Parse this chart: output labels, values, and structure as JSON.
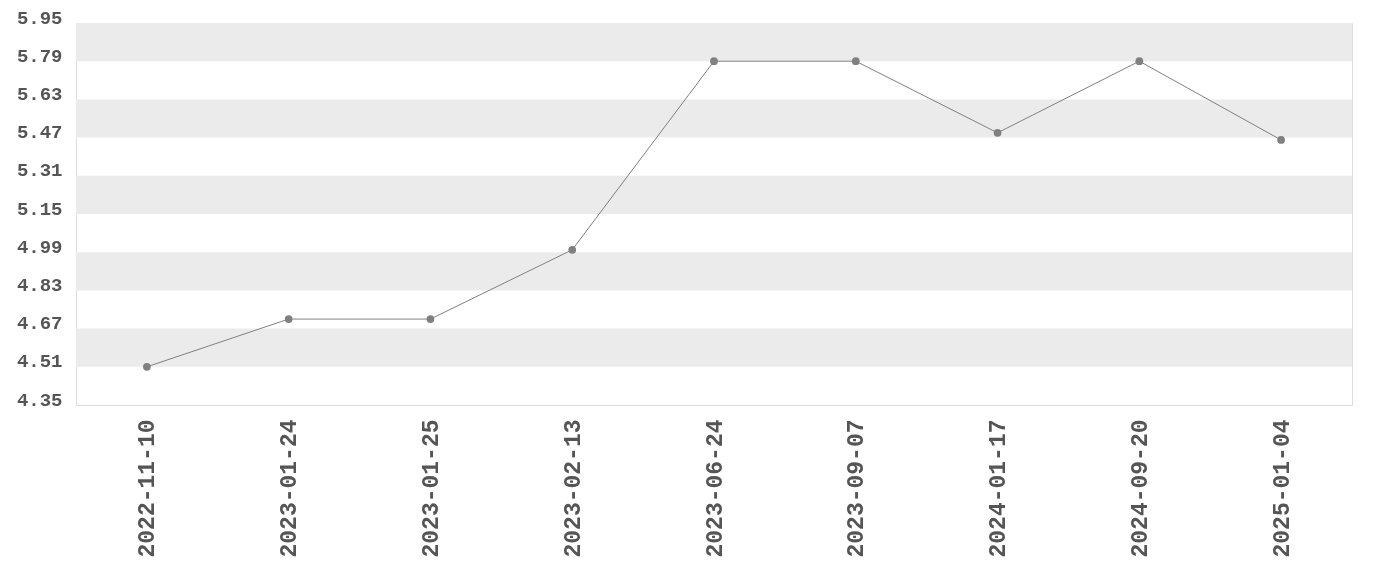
{
  "chart_data": {
    "type": "line",
    "categories": [
      "2022-11-10",
      "2023-01-24",
      "2023-01-25",
      "2023-02-13",
      "2023-06-24",
      "2023-09-07",
      "2024-01-17",
      "2024-09-20",
      "2025-01-04"
    ],
    "values": [
      4.51,
      4.71,
      4.71,
      5.0,
      5.79,
      5.79,
      5.49,
      5.79,
      5.46
    ],
    "color": "#808080",
    "ylim": [
      4.35,
      5.95
    ],
    "yticks": [
      4.35,
      4.51,
      4.67,
      4.83,
      4.99,
      5.15,
      5.31,
      5.47,
      5.63,
      5.79,
      5.95
    ],
    "bands": [
      {
        "axis": "y",
        "from": 5.79,
        "to": 5.95,
        "color": "#ebebeb"
      },
      {
        "axis": "y",
        "from": 5.47,
        "to": 5.63,
        "color": "#ebebeb"
      },
      {
        "axis": "y",
        "from": 5.15,
        "to": 5.31,
        "color": "#ebebeb"
      },
      {
        "axis": "y",
        "from": 4.83,
        "to": 4.99,
        "color": "#ebebeb"
      },
      {
        "axis": "y",
        "from": 4.51,
        "to": 4.67,
        "color": "#ebebeb"
      }
    ],
    "marker": "circle",
    "line_style": "solid"
  }
}
